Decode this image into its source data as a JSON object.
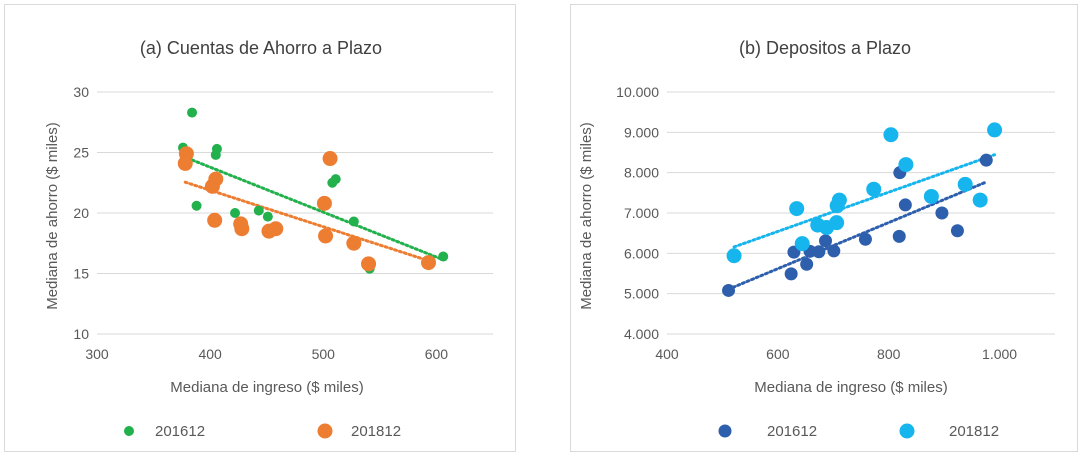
{
  "chart_data": [
    {
      "type": "scatter",
      "title": "(a) Cuentas de Ahorro a Plazo",
      "xlabel": "Mediana de ingreso ($ miles)",
      "ylabel": "Mediana de ahorro ($ miles)",
      "xlim": [
        300,
        650
      ],
      "ylim": [
        10,
        30
      ],
      "xticks": [
        300,
        400,
        500,
        600
      ],
      "yticks": [
        10,
        15,
        20,
        25,
        30
      ],
      "xtick_labels": [
        "300",
        "400",
        "500",
        "600"
      ],
      "ytick_labels": [
        "10",
        "15",
        "20",
        "25",
        "30"
      ],
      "grid": true,
      "legend_position": "bottom",
      "series": [
        {
          "name": "201612",
          "color": "#22b14c",
          "marker": "small",
          "trendline": true,
          "points": [
            [
              376,
              25.4
            ],
            [
              384,
              28.3
            ],
            [
              388,
              20.6
            ],
            [
              406,
              25.3
            ],
            [
              405,
              24.8
            ],
            [
              422,
              20.0
            ],
            [
              443,
              20.2
            ],
            [
              451,
              19.7
            ],
            [
              508,
              22.5
            ],
            [
              511,
              22.8
            ],
            [
              527,
              19.3
            ],
            [
              541,
              15.4
            ],
            [
              606,
              16.4
            ]
          ]
        },
        {
          "name": "201812",
          "color": "#ed7d31",
          "marker": "large",
          "trendline": true,
          "points": [
            [
              379,
              24.9
            ],
            [
              378,
              24.1
            ],
            [
              402,
              22.2
            ],
            [
              405,
              22.8
            ],
            [
              404,
              19.4
            ],
            [
              428,
              18.7
            ],
            [
              427,
              19.1
            ],
            [
              452,
              18.5
            ],
            [
              458,
              18.7
            ],
            [
              501,
              20.8
            ],
            [
              506,
              24.5
            ],
            [
              502,
              18.1
            ],
            [
              527,
              17.5
            ],
            [
              540,
              15.8
            ],
            [
              593,
              15.9
            ]
          ]
        }
      ]
    },
    {
      "type": "scatter",
      "title": "(b) Depositos a Plazo",
      "xlabel": "Mediana de ingreso ($ miles)",
      "ylabel": "Mediana de ahorro ($ miles)",
      "xlim": [
        400,
        1100
      ],
      "ylim": [
        4000,
        10000
      ],
      "xticks": [
        400,
        600,
        800,
        1000
      ],
      "yticks": [
        4000,
        5000,
        6000,
        7000,
        8000,
        9000,
        10000
      ],
      "xtick_labels": [
        "400",
        "600",
        "800",
        "1.000"
      ],
      "ytick_labels": [
        "4.000",
        "5.000",
        "6.000",
        "7.000",
        "8.000",
        "9.000",
        "10.000"
      ],
      "grid": true,
      "legend_position": "bottom",
      "series": [
        {
          "name": "201612",
          "color": "#2e5fad",
          "marker": "medium",
          "trendline": true,
          "points": [
            [
              511,
              5080
            ],
            [
              624,
              5490
            ],
            [
              629,
              6030
            ],
            [
              652,
              5730
            ],
            [
              658,
              6050
            ],
            [
              674,
              6040
            ],
            [
              686,
              6310
            ],
            [
              701,
              6060
            ],
            [
              758,
              6350
            ],
            [
              819,
              6420
            ],
            [
              820,
              8000
            ],
            [
              830,
              7200
            ],
            [
              896,
              7000
            ],
            [
              924,
              6560
            ],
            [
              976,
              8310
            ]
          ]
        },
        {
          "name": "201812",
          "color": "#16b5ee",
          "marker": "large",
          "trendline": true,
          "points": [
            [
              521,
              5940
            ],
            [
              634,
              7110
            ],
            [
              644,
              6240
            ],
            [
              672,
              6700
            ],
            [
              688,
              6640
            ],
            [
              707,
              7180
            ],
            [
              706,
              6760
            ],
            [
              711,
              7320
            ],
            [
              773,
              7590
            ],
            [
              804,
              8940
            ],
            [
              831,
              8200
            ],
            [
              877,
              7410
            ],
            [
              938,
              7710
            ],
            [
              965,
              7320
            ],
            [
              991,
              9060
            ]
          ]
        }
      ]
    }
  ]
}
